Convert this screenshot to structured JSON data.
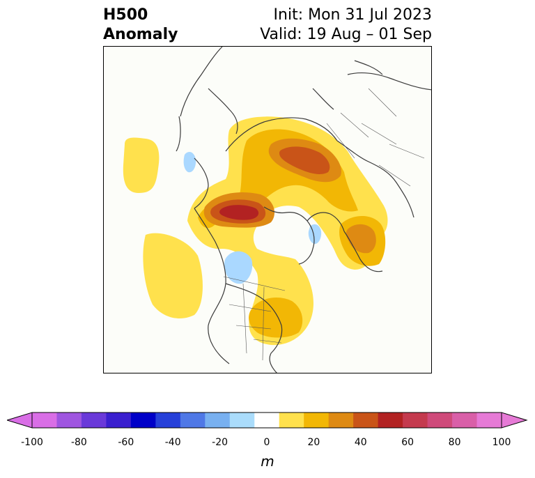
{
  "title": {
    "left_line1": "H500",
    "left_line2": "Anomaly",
    "right_line1": "Init: Mon 31 Jul 2023",
    "right_line2": "Valid: 19 Aug – 01 Sep"
  },
  "map": {
    "projection": "polar stereographic (North America / Arctic)",
    "field": "500 hPa geopotential height anomaly",
    "features": [
      {
        "name": "north-pacific-positive-anomaly",
        "level": 10,
        "color": "#ffe14d"
      },
      {
        "name": "alaska-beaufort-positive-anomaly",
        "peak_level": 60,
        "color": "#b22222"
      },
      {
        "name": "siberia-positive-anomaly",
        "peak_level": 40,
        "color": "#d9861a"
      },
      {
        "name": "scandinavia-positive-anomaly",
        "peak_level": 40,
        "color": "#d9861a"
      },
      {
        "name": "eastern-canada-us-positive-anomaly",
        "peak_level": 20,
        "color": "#f2b705"
      },
      {
        "name": "northeast-pacific-positive-anomaly",
        "level": 10,
        "color": "#ffe14d"
      },
      {
        "name": "western-canada-negative-anomaly",
        "level": -10,
        "color": "#aad8ff"
      },
      {
        "name": "greenland-negative-anomaly",
        "level": -10,
        "color": "#aad8ff"
      },
      {
        "name": "bering-negative-anomaly",
        "level": -10,
        "color": "#aad8ff"
      }
    ]
  },
  "colorbar": {
    "unit_label": "m",
    "ticks": [
      "-100",
      "-80",
      "-60",
      "-40",
      "-20",
      "0",
      "20",
      "40",
      "60",
      "80",
      "100"
    ],
    "levels": [
      -100,
      -90,
      -80,
      -70,
      -60,
      -50,
      -40,
      -30,
      -20,
      -10,
      10,
      20,
      30,
      40,
      50,
      60,
      70,
      80,
      90,
      100
    ],
    "colors": [
      "#d96ee6",
      "#9f55e0",
      "#6a39d9",
      "#3a1fcf",
      "#0000c8",
      "#2640d9",
      "#4f78e6",
      "#78b0f0",
      "#aadcfb",
      "#ffffff",
      "#ffe14d",
      "#f2b705",
      "#de8a13",
      "#c95418",
      "#b22222",
      "#c43a4e",
      "#cf4a7a",
      "#d95fa8",
      "#e67ad6"
    ],
    "extend_min_color": "#d96ee6",
    "extend_max_color": "#e67ad6"
  }
}
